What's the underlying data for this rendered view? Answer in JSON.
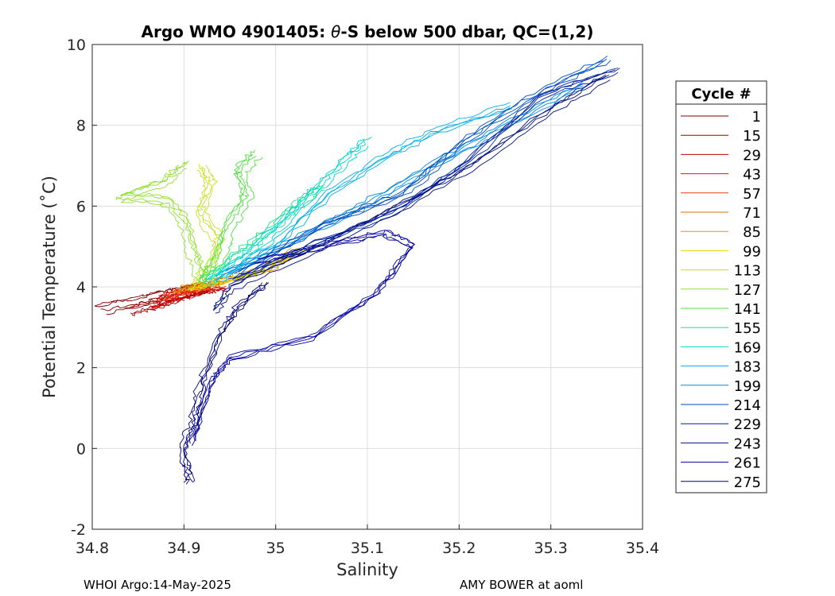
{
  "chart_data": {
    "type": "line",
    "title_parts": [
      "Argo WMO 4901405: ",
      "θ",
      "-S below 500 dbar,  QC=(1,2)"
    ],
    "title": "Argo WMO 4901405: θ-S below 500 dbar,  QC=(1,2)",
    "xlabel": "Salinity",
    "ylabel": "Potential Temperature (˚C)",
    "xlim": [
      34.8,
      35.4
    ],
    "ylim": [
      -2,
      10
    ],
    "xticks": [
      34.8,
      34.9,
      35.0,
      35.1,
      35.2,
      35.3,
      35.4
    ],
    "xtick_labels": [
      "34.8",
      "34.9",
      "35",
      "35.1",
      "35.2",
      "35.3",
      "35.4"
    ],
    "yticks": [
      -2,
      0,
      2,
      4,
      6,
      8,
      10
    ],
    "ytick_labels": [
      "-2",
      "0",
      "2",
      "4",
      "6",
      "8",
      "10"
    ],
    "grid": true,
    "legend": {
      "title": "Cycle #",
      "placement": "outside-right",
      "entries": [
        {
          "label": "1",
          "color": "#800000"
        },
        {
          "label": "15",
          "color": "#a00000"
        },
        {
          "label": "29",
          "color": "#c80000"
        },
        {
          "label": "43",
          "color": "#e41010"
        },
        {
          "label": "57",
          "color": "#e83a10"
        },
        {
          "label": "71",
          "color": "#e07000"
        },
        {
          "label": "85",
          "color": "#d8a000"
        },
        {
          "label": "99",
          "color": "#e6d400"
        },
        {
          "label": "113",
          "color": "#c8e020"
        },
        {
          "label": "127",
          "color": "#90e030"
        },
        {
          "label": "141",
          "color": "#50e040"
        },
        {
          "label": "155",
          "color": "#20e090"
        },
        {
          "label": "169",
          "color": "#00d8d0"
        },
        {
          "label": "183",
          "color": "#00b0e8"
        },
        {
          "label": "199",
          "color": "#0088e0"
        },
        {
          "label": "214",
          "color": "#0050c0"
        },
        {
          "label": "229",
          "color": "#0020a0"
        },
        {
          "label": "243",
          "color": "#001080"
        },
        {
          "label": "261",
          "color": "#0000a0"
        },
        {
          "label": "275",
          "color": "#00007a"
        }
      ]
    },
    "series": [
      {
        "name": "1",
        "color": "#800000",
        "points": [
          [
            34.81,
            3.45
          ],
          [
            34.85,
            3.62
          ],
          [
            34.88,
            3.78
          ],
          [
            34.9,
            3.88
          ],
          [
            34.92,
            3.98
          ]
        ]
      },
      {
        "name": "15",
        "color": "#a00000",
        "points": [
          [
            34.84,
            3.42
          ],
          [
            34.87,
            3.6
          ],
          [
            34.89,
            3.78
          ],
          [
            34.91,
            3.92
          ],
          [
            34.93,
            4.0
          ]
        ]
      },
      {
        "name": "29",
        "color": "#c80000",
        "points": [
          [
            34.86,
            3.55
          ],
          [
            34.88,
            3.72
          ],
          [
            34.9,
            3.85
          ],
          [
            34.92,
            3.98
          ],
          [
            34.94,
            4.05
          ]
        ]
      },
      {
        "name": "43",
        "color": "#e41010",
        "points": [
          [
            34.87,
            3.7
          ],
          [
            34.89,
            3.85
          ],
          [
            34.91,
            3.97
          ],
          [
            34.93,
            4.06
          ]
        ]
      },
      {
        "name": "57",
        "color": "#e83a10",
        "points": [
          [
            34.88,
            3.82
          ],
          [
            34.9,
            3.95
          ],
          [
            34.92,
            4.05
          ],
          [
            34.94,
            4.12
          ]
        ]
      },
      {
        "name": "71",
        "color": "#e07000",
        "points": [
          [
            34.89,
            3.9
          ],
          [
            34.91,
            4.0
          ],
          [
            34.93,
            4.08
          ],
          [
            34.95,
            4.15
          ]
        ]
      },
      {
        "name": "85",
        "color": "#d8a000",
        "points": [
          [
            34.9,
            3.95
          ],
          [
            34.93,
            4.1
          ],
          [
            34.97,
            4.3
          ],
          [
            35.0,
            4.55
          ],
          [
            35.02,
            4.9
          ]
        ]
      },
      {
        "name": "99",
        "color": "#e6d400",
        "points": [
          [
            34.91,
            3.98
          ],
          [
            34.94,
            4.15
          ],
          [
            34.98,
            4.4
          ],
          [
            35.01,
            4.72
          ],
          [
            35.03,
            5.0
          ]
        ]
      },
      {
        "name": "113",
        "color": "#c8e020",
        "points": [
          [
            34.91,
            4.0
          ],
          [
            34.93,
            4.5
          ],
          [
            34.94,
            5.2
          ],
          [
            34.92,
            5.8
          ],
          [
            34.93,
            6.6
          ],
          [
            34.92,
            7.0
          ]
        ]
      },
      {
        "name": "127",
        "color": "#90e030",
        "points": [
          [
            34.92,
            4.05
          ],
          [
            34.91,
            4.8
          ],
          [
            34.9,
            5.6
          ],
          [
            34.88,
            6.1
          ],
          [
            34.83,
            6.2
          ],
          [
            34.88,
            6.6
          ],
          [
            34.9,
            7.0
          ]
        ]
      },
      {
        "name": "141",
        "color": "#50e040",
        "points": [
          [
            34.92,
            4.1
          ],
          [
            34.94,
            4.8
          ],
          [
            34.95,
            5.6
          ],
          [
            34.97,
            6.3
          ],
          [
            34.96,
            6.9
          ],
          [
            34.98,
            7.3
          ]
        ]
      },
      {
        "name": "155",
        "color": "#20e090",
        "points": [
          [
            34.92,
            4.1
          ],
          [
            34.95,
            4.7
          ],
          [
            34.98,
            5.2
          ],
          [
            35.01,
            5.8
          ],
          [
            35.03,
            6.2
          ],
          [
            35.05,
            6.5
          ]
        ]
      },
      {
        "name": "169",
        "color": "#00d8d0",
        "points": [
          [
            34.93,
            4.15
          ],
          [
            34.97,
            4.8
          ],
          [
            35.01,
            5.6
          ],
          [
            35.05,
            6.5
          ],
          [
            35.08,
            7.2
          ],
          [
            35.1,
            7.6
          ]
        ]
      },
      {
        "name": "183",
        "color": "#00b0e8",
        "points": [
          [
            34.94,
            4.2
          ],
          [
            35.0,
            5.0
          ],
          [
            35.06,
            6.3
          ],
          [
            35.12,
            7.2
          ],
          [
            35.18,
            7.9
          ],
          [
            35.26,
            8.5
          ]
        ]
      },
      {
        "name": "199",
        "color": "#0088e0",
        "points": [
          [
            34.95,
            4.3
          ],
          [
            35.03,
            5.2
          ],
          [
            35.1,
            6.0
          ],
          [
            35.17,
            6.9
          ],
          [
            35.24,
            7.8
          ],
          [
            35.34,
            9.0
          ]
        ]
      },
      {
        "name": "214",
        "color": "#0050c0",
        "points": [
          [
            34.96,
            4.3
          ],
          [
            35.05,
            5.5
          ],
          [
            35.14,
            6.3
          ],
          [
            35.2,
            7.5
          ],
          [
            35.28,
            8.7
          ],
          [
            35.36,
            9.6
          ]
        ]
      },
      {
        "name": "229",
        "color": "#0020a0",
        "points": [
          [
            34.95,
            4.2
          ],
          [
            35.04,
            5.1
          ],
          [
            35.13,
            5.9
          ],
          [
            35.21,
            7.2
          ],
          [
            35.29,
            8.8
          ],
          [
            35.37,
            9.4
          ]
        ]
      },
      {
        "name": "243",
        "color": "#001080",
        "points": [
          [
            34.93,
            3.4
          ],
          [
            34.95,
            4.0
          ],
          [
            35.03,
            4.8
          ],
          [
            35.1,
            5.6
          ],
          [
            35.2,
            6.8
          ],
          [
            35.3,
            8.4
          ],
          [
            35.36,
            9.2
          ]
        ]
      },
      {
        "name": "261",
        "color": "#0000a0",
        "points": [
          [
            34.91,
            0.1
          ],
          [
            34.93,
            1.6
          ],
          [
            34.95,
            2.2
          ],
          [
            35.04,
            2.7
          ],
          [
            35.11,
            3.8
          ],
          [
            35.15,
            5.0
          ],
          [
            35.12,
            5.3
          ],
          [
            35.06,
            5.0
          ],
          [
            34.98,
            4.6
          ]
        ]
      },
      {
        "name": "275",
        "color": "#00007a",
        "points": [
          [
            34.907,
            -0.85
          ],
          [
            34.9,
            -0.1
          ],
          [
            34.91,
            0.6
          ],
          [
            34.92,
            1.6
          ],
          [
            34.94,
            2.8
          ],
          [
            34.96,
            3.5
          ],
          [
            34.99,
            4.1
          ]
        ]
      }
    ]
  },
  "footer": {
    "left": "WHOI Argo:14-May-2025",
    "right": "AMY BOWER at aoml"
  }
}
